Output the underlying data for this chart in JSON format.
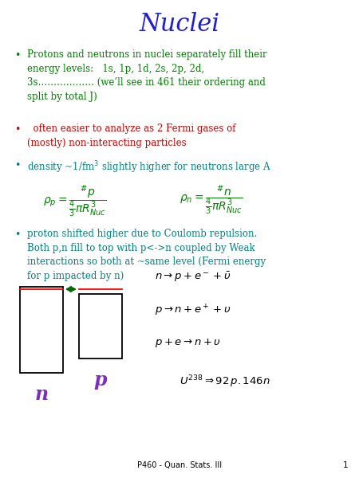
{
  "title": "Nuclei",
  "title_color": "#2020CC",
  "title_fontsize": 22,
  "background_color": "#FFFFFF",
  "green_color": "#008000",
  "red_color": "#CC0000",
  "teal_color": "#008080",
  "purple_color": "#7B2FBE",
  "black_color": "#000000",
  "footer_text": "P460 - Quan. Stats. III",
  "footer_page": "1"
}
